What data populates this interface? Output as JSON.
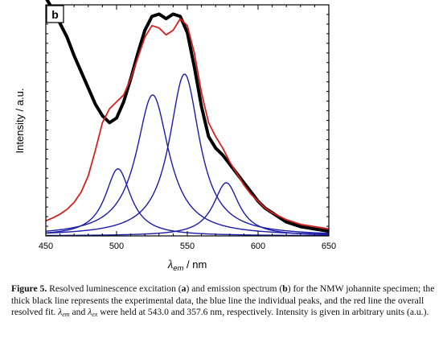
{
  "chart_data": {
    "type": "line",
    "panel_label": "b",
    "xlabel": {
      "symbol": "λ",
      "subscript": "em",
      "unit": " / nm"
    },
    "ylabel": "Intensity / a.u.",
    "xlim": [
      450,
      650
    ],
    "ylim": [
      0,
      1
    ],
    "x_ticks": [
      450,
      500,
      550,
      600,
      650
    ],
    "y_tick_labels": false,
    "colors": {
      "experimental": "#000000",
      "fit": "#d62020",
      "peaks": "#1c1ca8"
    },
    "series": [
      {
        "style": "experimental",
        "x": [
          450,
          455,
          460,
          465,
          470,
          475,
          480,
          485,
          490,
          495,
          500,
          505,
          510,
          515,
          520,
          525,
          530,
          535,
          540,
          545,
          550,
          555,
          560,
          565,
          570,
          575,
          580,
          585,
          590,
          595,
          600,
          605,
          610,
          615,
          620,
          625,
          630,
          635,
          640,
          645,
          650
        ],
        "y": [
          1.03,
          0.98,
          0.92,
          0.86,
          0.78,
          0.71,
          0.64,
          0.57,
          0.52,
          0.49,
          0.51,
          0.58,
          0.68,
          0.79,
          0.89,
          0.95,
          0.96,
          0.94,
          0.96,
          0.95,
          0.88,
          0.73,
          0.56,
          0.43,
          0.38,
          0.35,
          0.31,
          0.27,
          0.23,
          0.19,
          0.15,
          0.12,
          0.1,
          0.08,
          0.06,
          0.05,
          0.04,
          0.035,
          0.03,
          0.025,
          0.02
        ]
      },
      {
        "style": "fit",
        "x": [
          450,
          455,
          460,
          465,
          470,
          475,
          480,
          485,
          490,
          495,
          500,
          505,
          510,
          515,
          520,
          525,
          530,
          535,
          540,
          545,
          550,
          555,
          560,
          565,
          570,
          575,
          580,
          585,
          590,
          595,
          600,
          605,
          610,
          615,
          620,
          625,
          630,
          635,
          640,
          645,
          650
        ],
        "y": [
          0.065,
          0.078,
          0.094,
          0.115,
          0.145,
          0.19,
          0.26,
          0.37,
          0.49,
          0.55,
          0.58,
          0.61,
          0.68,
          0.77,
          0.86,
          0.91,
          0.9,
          0.87,
          0.89,
          0.94,
          0.91,
          0.79,
          0.62,
          0.49,
          0.43,
          0.38,
          0.32,
          0.27,
          0.22,
          0.18,
          0.15,
          0.12,
          0.1,
          0.085,
          0.07,
          0.06,
          0.05,
          0.045,
          0.04,
          0.035,
          0.03
        ]
      }
    ],
    "peaks": [
      {
        "center": 501,
        "height": 0.29,
        "width": 11
      },
      {
        "center": 525.5,
        "height": 0.61,
        "width": 14
      },
      {
        "center": 548,
        "height": 0.7,
        "width": 13
      },
      {
        "center": 577.5,
        "height": 0.23,
        "width": 11
      }
    ]
  },
  "caption": {
    "figure_number": "Figure 5.",
    "text_1": " Resolved luminescence excitation (",
    "a": "a",
    "text_2": ") and emission spectrum (",
    "b": "b",
    "text_3": ") for the NMW johannite specimen; the thick black line represents the experimental data, the blue line the individual peaks, and the red line the overall resolved fit. ",
    "lambda_em": "λ",
    "em": "em",
    "text_4": " and ",
    "lambda_ex": "λ",
    "ex": "ex",
    "text_5": " were held at 543.0 and 357.6 nm, respectively. Intensity is given in arbitrary units (a.u.)."
  }
}
